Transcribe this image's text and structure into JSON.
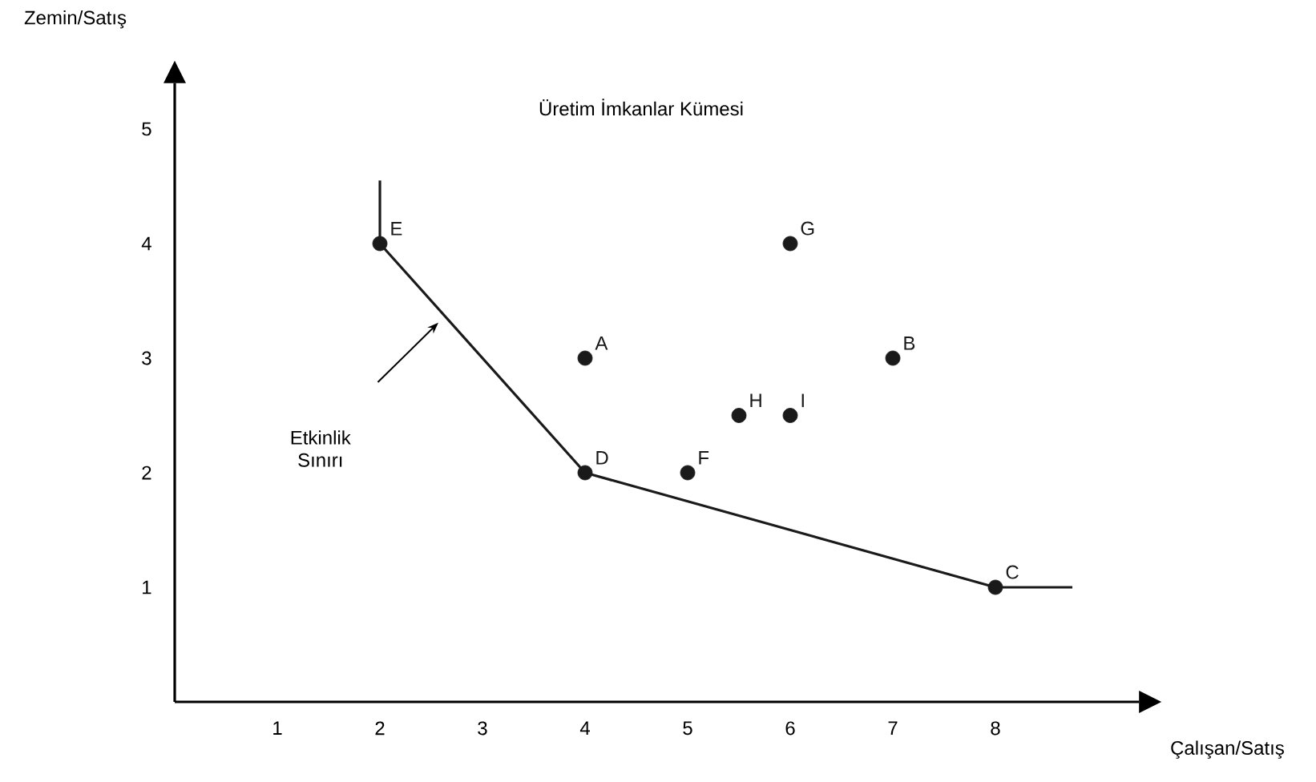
{
  "chart_data": {
    "type": "scatter",
    "title": "Üretim İmkanlar Kümesi",
    "xlabel": "Çalışan/Satış",
    "ylabel": "Zemin/Satış",
    "xlim": [
      0,
      9.4
    ],
    "ylim": [
      0,
      5.4
    ],
    "xticks": [
      1,
      2,
      3,
      4,
      5,
      6,
      7,
      8
    ],
    "yticks": [
      1,
      2,
      3,
      4,
      5
    ],
    "grid": false,
    "legend": false,
    "marker": "circle",
    "annotations": [
      "Etkinlik Sınırı"
    ],
    "series": [
      {
        "type": "line",
        "color": "#1a1a1a",
        "marker": "none",
        "x": [
          2,
          2,
          4,
          8,
          8.75
        ],
        "values": [
          4.55,
          4,
          2,
          1,
          1
        ]
      },
      {
        "name": "A",
        "color": "#1a1a1a",
        "x": [
          4
        ],
        "values": [
          3
        ]
      },
      {
        "name": "B",
        "color": "#1a1a1a",
        "x": [
          7
        ],
        "values": [
          3
        ]
      },
      {
        "name": "C",
        "color": "#1a1a1a",
        "x": [
          8
        ],
        "values": [
          1
        ]
      },
      {
        "name": "D",
        "color": "#1a1a1a",
        "x": [
          4
        ],
        "values": [
          2
        ]
      },
      {
        "name": "E",
        "color": "#1a1a1a",
        "x": [
          2
        ],
        "values": [
          4
        ]
      },
      {
        "name": "F",
        "color": "#1a1a1a",
        "x": [
          5
        ],
        "values": [
          2
        ]
      },
      {
        "name": "G",
        "color": "#1a1a1a",
        "x": [
          6
        ],
        "values": [
          4
        ]
      },
      {
        "name": "H",
        "color": "#1a1a1a",
        "x": [
          5.5
        ],
        "values": [
          2.5
        ]
      },
      {
        "name": "I",
        "color": "#1a1a1a",
        "x": [
          6
        ],
        "values": [
          2.5
        ]
      }
    ]
  }
}
